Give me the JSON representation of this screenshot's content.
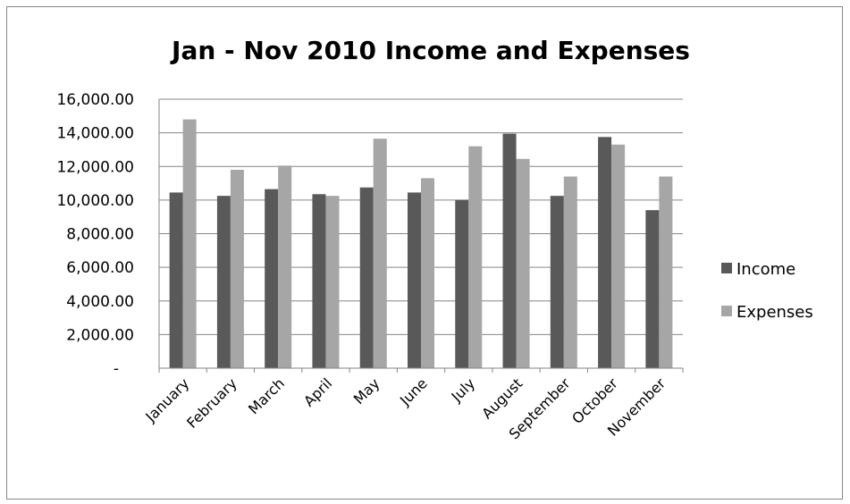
{
  "chart_data": {
    "type": "bar",
    "title": "Jan - Nov 2010 Income and Expenses",
    "xlabel": "",
    "ylabel": "",
    "categories": [
      "January",
      "February",
      "March",
      "April",
      "May",
      "June",
      "July",
      "August",
      "September",
      "October",
      "November"
    ],
    "series": [
      {
        "name": "Income",
        "color": "#595959",
        "values": [
          10450,
          10250,
          10650,
          10350,
          10750,
          10450,
          10000,
          13950,
          10250,
          13750,
          9400
        ]
      },
      {
        "name": "Expenses",
        "color": "#a6a6a6",
        "values": [
          14800,
          11800,
          12050,
          10250,
          13650,
          11300,
          13200,
          12450,
          11400,
          13300,
          11400
        ]
      }
    ],
    "ylim": [
      0,
      16000
    ],
    "yticks": [
      0,
      2000,
      4000,
      6000,
      8000,
      10000,
      12000,
      14000,
      16000
    ],
    "ytick_labels": [
      "-",
      "2,000.00",
      "4,000.00",
      "6,000.00",
      "8,000.00",
      "10,000.00",
      "12,000.00",
      "14,000.00",
      "16,000.00"
    ],
    "grid": true,
    "legend_position": "right"
  }
}
